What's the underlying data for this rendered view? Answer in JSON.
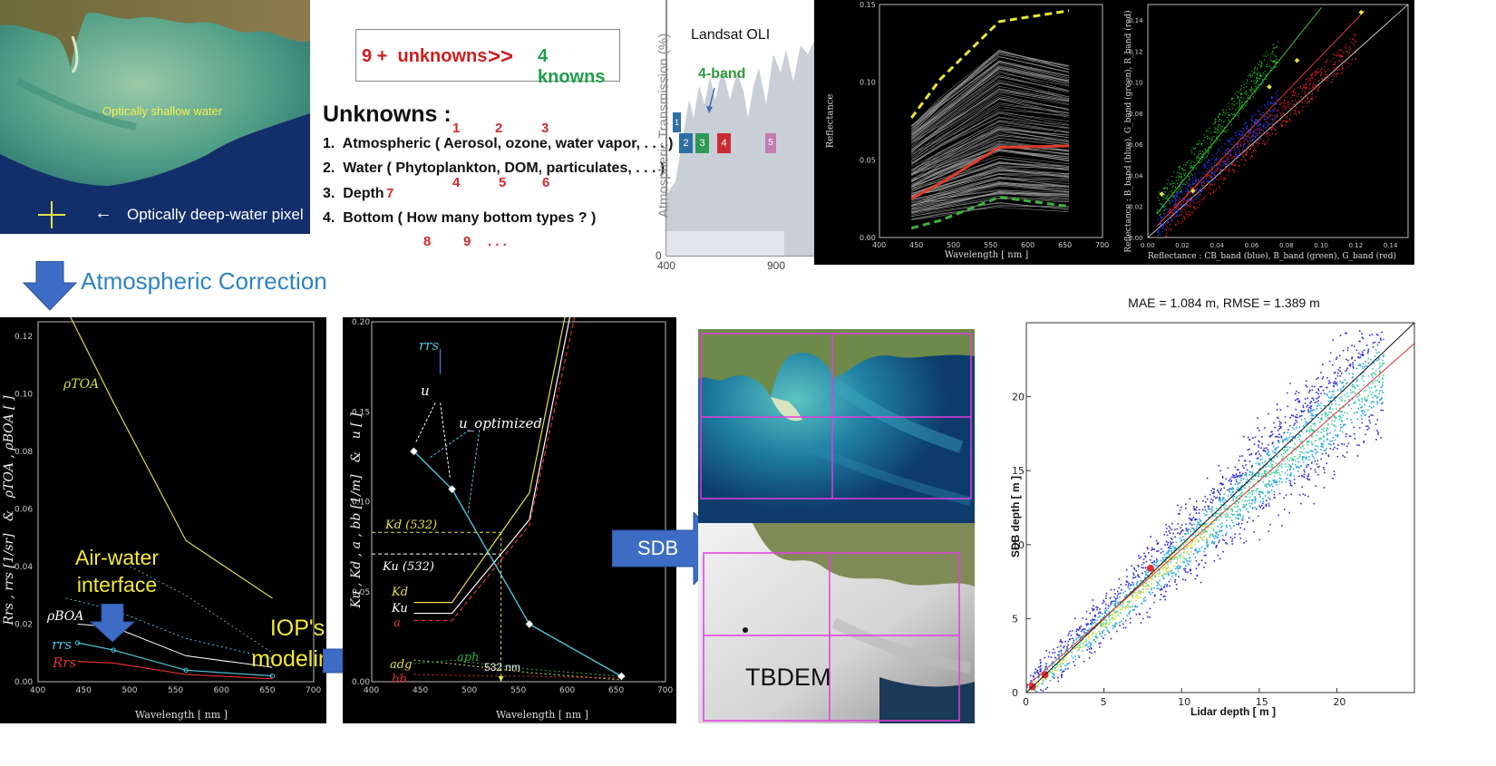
{
  "satellite_top": {
    "shallow_label": "Optically shallow water",
    "deep_label": "Optically deep-water pixel"
  },
  "equation": {
    "unknowns_count": "9 +  unknowns",
    "gg": ">>",
    "knowns": "4 knowns"
  },
  "unknowns": {
    "title": "Unknowns :",
    "top_numbers": [
      "1",
      "2",
      "3"
    ],
    "items": [
      "1.  Atmospheric ( Aerosol, ozone, water vapor, . . . )",
      "2.  Water ( Phytoplankton, DOM, particulates, . . . )",
      "3.  Depth",
      "4.  Bottom ( How many bottom types ? )"
    ],
    "depth_num": "7",
    "water_nums": [
      "4",
      "5",
      "6"
    ],
    "bottom_nums": [
      "8",
      "9",
      ". . ."
    ]
  },
  "transmission": {
    "ylabel": "Atmospheric Transmission (%)",
    "title": "Landsat OLI",
    "band_label": "4-band",
    "x_ticks": [
      "400",
      "900"
    ],
    "y_tick": "0",
    "bands": [
      {
        "label": "1",
        "color": "#2e6fa6"
      },
      {
        "label": "2",
        "color": "#2e6fa6"
      },
      {
        "label": "3",
        "color": "#2e9a55"
      },
      {
        "label": "4",
        "color": "#cc2a33"
      },
      {
        "label": "5",
        "color": "#c47bb0"
      }
    ]
  },
  "reflectance_chart": {
    "ylabel": "Reflectance",
    "xlabel": "Wavelength [ nm ]",
    "x_ticks": [
      "400",
      "450",
      "500",
      "550",
      "600",
      "650",
      "700"
    ],
    "y_ticks": [
      "0.00",
      "0.05",
      "0.10",
      "0.15"
    ],
    "colors": {
      "upper": "#e6e63a",
      "mean": "#e03c2a",
      "lower": "#3cb43c"
    }
  },
  "scatter_chart": {
    "ylabel": "Reflectance :  B_band (blue),  G_band (green),  R_band (red)",
    "xlabel": "Reflectance :  CB_band (blue),  B_band (green),  G_band (red)",
    "x_ticks": [
      "0.00",
      "0.02",
      "0.04",
      "0.06",
      "0.08",
      "0.10",
      "0.12",
      "0.14"
    ],
    "y_ticks": [
      "0.00",
      "0.02",
      "0.04",
      "0.06",
      "0.08",
      "0.10",
      "0.12",
      "0.14"
    ]
  },
  "atm_correction": {
    "label": "Atmospheric Correction"
  },
  "rrs_chart": {
    "ylabel": "Rrs , rrs [1/sr]   &   ρTOA , ρBOA [ ]",
    "xlabel": "Wavelength [ nm ]",
    "x_ticks": [
      "400",
      "450",
      "500",
      "550",
      "600",
      "650",
      "700"
    ],
    "y_ticks": [
      "0.00",
      "0.02",
      "0.04",
      "0.06",
      "0.08",
      "0.10",
      "0.12"
    ],
    "label_toa": "ρTOA",
    "label_boa": "ρBOA",
    "label_rrs_small": "rrs",
    "label_rrs_big": "Rrs"
  },
  "airwater": {
    "line1": "Air-water",
    "line2": "interface"
  },
  "iop": {
    "line1": "IOP's",
    "line2": "modeling"
  },
  "k_chart": {
    "ylabel": "Ku , Kd , a , bb [1/m]   &   u [ ]",
    "xlabel": "Wavelength [ nm ]",
    "x_ticks": [
      "400",
      "450",
      "500",
      "550",
      "600",
      "650",
      "700"
    ],
    "y_ticks": [
      "0.00",
      "0.05",
      "0.10",
      "0.15",
      "0.20"
    ],
    "label_rrs": "rrs",
    "label_u": "u",
    "label_uopt": "u_optimized",
    "label_kd532": "Kd (532)",
    "label_ku532": "Ku (532)",
    "label_kd": "Kd",
    "label_ku": "Ku",
    "label_a": "a",
    "label_adg": "adg",
    "label_aph": "aph",
    "label_bb": "bb",
    "label_532": "532 nm"
  },
  "sdb_arrow": {
    "label": "SDB"
  },
  "tbdem": {
    "label": "TBDEM"
  },
  "density_chart": {
    "title": "MAE = 1.084 m, RMSE = 1.389 m",
    "ylabel": "SDB depth [ m ]",
    "xlabel": "Lidar depth [ m ]",
    "x_ticks": [
      "0",
      "5",
      "10",
      "15",
      "20"
    ],
    "y_ticks": [
      "0",
      "5",
      "10",
      "15",
      "20"
    ]
  }
}
